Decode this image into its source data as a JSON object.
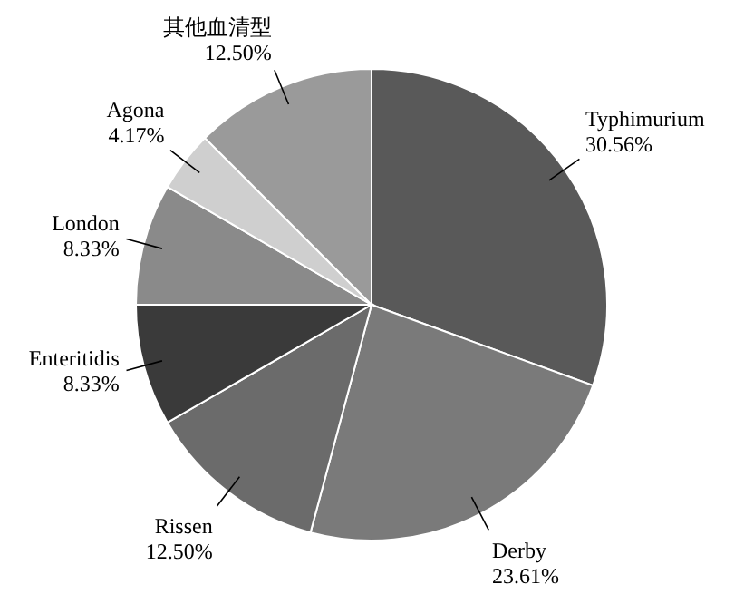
{
  "chart_data": {
    "type": "pie",
    "categories": [
      "Typhimurium",
      "Derby",
      "Rissen",
      "Enteritidis",
      "London",
      "Agona",
      "其他血清型"
    ],
    "values": [
      30.56,
      23.61,
      12.5,
      8.33,
      8.33,
      4.17,
      12.5
    ],
    "value_labels": [
      "30.56%",
      "23.61%",
      "12.50%",
      "8.33%",
      "8.33%",
      "4.17%",
      "12.50%"
    ],
    "colors": [
      "#595959",
      "#7a7a7a",
      "#6b6b6b",
      "#3a3a3a",
      "#8a8a8a",
      "#cfcfcf",
      "#9a9a9a"
    ]
  }
}
